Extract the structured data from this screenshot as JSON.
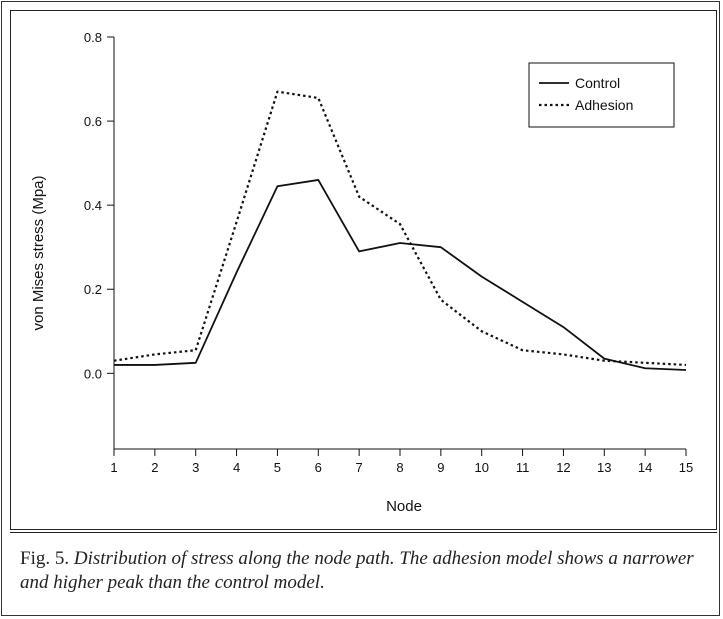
{
  "chart_data": {
    "type": "line",
    "xlabel": "Node",
    "ylabel": "von Mises stress (Mpa)",
    "x": [
      1,
      2,
      3,
      4,
      5,
      6,
      7,
      8,
      9,
      10,
      11,
      12,
      13,
      14,
      15
    ],
    "xlim": [
      1,
      15
    ],
    "ylim": [
      -0.18,
      0.8
    ],
    "yticks": [
      0.0,
      0.2,
      0.4,
      0.6,
      0.8
    ],
    "ytick_labels": [
      "0.0",
      "0.2",
      "0.4",
      "0.6",
      "0.8"
    ],
    "xtick_labels": [
      "1",
      "2",
      "3",
      "4",
      "5",
      "6",
      "7",
      "8",
      "9",
      "10",
      "11",
      "12",
      "13",
      "14",
      "15"
    ],
    "legend_position": "top-right",
    "grid": false,
    "series": [
      {
        "name": "Control",
        "style": "solid",
        "values": [
          0.02,
          0.02,
          0.025,
          0.24,
          0.445,
          0.46,
          0.29,
          0.31,
          0.3,
          0.23,
          0.17,
          0.11,
          0.035,
          0.012,
          0.008
        ]
      },
      {
        "name": "Adhesion",
        "style": "dotted",
        "values": [
          0.03,
          0.045,
          0.055,
          0.36,
          0.67,
          0.655,
          0.42,
          0.355,
          0.175,
          0.1,
          0.055,
          0.045,
          0.03,
          0.025,
          0.02
        ]
      }
    ]
  },
  "caption": {
    "label": "Fig. 5.",
    "text": "Distribution of stress along the node path. The adhesion model shows a narrower and higher peak than the control model."
  }
}
